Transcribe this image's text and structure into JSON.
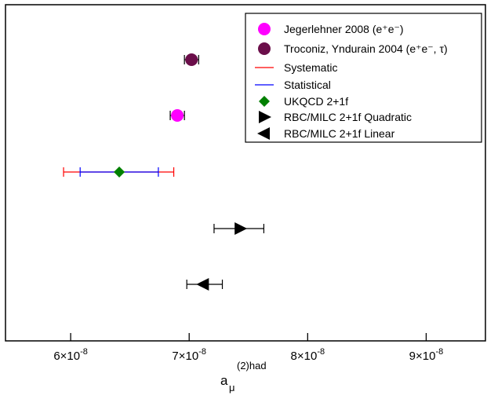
{
  "chart_data": {
    "type": "scatter",
    "title": "",
    "xlabel": "a_μ^(2)had",
    "xlabel_parts": {
      "base": "a",
      "sub": "μ",
      "sup": "(2)had"
    },
    "xlim": [
      5.45e-08,
      9.5e-08
    ],
    "x_ticks": [
      {
        "value": 6e-08,
        "mantissa": "6×10",
        "exp": "-8"
      },
      {
        "value": 7e-08,
        "mantissa": "7×10",
        "exp": "-8"
      },
      {
        "value": 8e-08,
        "mantissa": "8×10",
        "exp": "-8"
      },
      {
        "value": 9e-08,
        "mantissa": "9×10",
        "exp": "-8"
      }
    ],
    "grid": false,
    "legend_position": "top-right",
    "legend": [
      {
        "label": "Jegerlehner 2008 (e⁺e⁻)",
        "marker": "circle",
        "color": "#ff00ff"
      },
      {
        "label": "Troconiz, Yndurain 2004 (e⁺e⁻, τ)",
        "marker": "circle",
        "color": "#6b0e4a"
      },
      {
        "label": "Systematic",
        "marker": "line",
        "color": "#ff0000"
      },
      {
        "label": "Statistical",
        "marker": "line",
        "color": "#0000ff"
      },
      {
        "label": "UKQCD  2+1f",
        "marker": "diamond",
        "color": "#008000"
      },
      {
        "label": "RBC/MILC 2+1f Quadratic",
        "marker": "triangle-right",
        "color": "#000000"
      },
      {
        "label": "RBC/MILC 2+1f Linear",
        "marker": "triangle-left",
        "color": "#000000"
      }
    ],
    "series": [
      {
        "name": "Troconiz, Yndurain 2004 (e⁺e⁻, τ)",
        "row": 1,
        "x": 7.02e-08,
        "err_low": 6.96e-08,
        "err_high": 7.08e-08,
        "marker": "circle",
        "color": "#6b0e4a"
      },
      {
        "name": "Jegerlehner 2008 (e⁺e⁻)",
        "row": 2,
        "x": 6.9e-08,
        "err_low": 6.84e-08,
        "err_high": 6.96e-08,
        "marker": "circle",
        "color": "#ff00ff"
      },
      {
        "name": "UKQCD  2+1f",
        "row": 3,
        "x": 6.41e-08,
        "sys_low": 5.94e-08,
        "sys_high": 6.87e-08,
        "stat_low": 6.08e-08,
        "stat_high": 6.74e-08,
        "marker": "diamond",
        "color": "#008000"
      },
      {
        "name": "RBC/MILC 2+1f Quadratic",
        "row": 4,
        "x": 7.43e-08,
        "err_low": 7.21e-08,
        "err_high": 7.63e-08,
        "marker": "triangle-right",
        "color": "#000000"
      },
      {
        "name": "RBC/MILC 2+1f Linear",
        "row": 5,
        "x": 7.12e-08,
        "err_low": 6.98e-08,
        "err_high": 7.28e-08,
        "marker": "triangle-left",
        "color": "#000000"
      }
    ],
    "error_colors": {
      "systematic": "#ff0000",
      "statistical": "#0000ff",
      "single": "#000000"
    }
  }
}
